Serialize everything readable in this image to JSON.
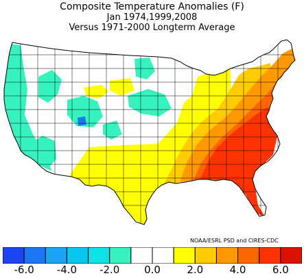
{
  "title": {
    "line1": "Composite Temperature Anomalies (F)",
    "line2": "Jan  1974,1999,2008",
    "line3": "Versus 1971-2000 Longterm Average"
  },
  "credit": "NOAA/ESRL PSD and CIRES-CDC",
  "legend": {
    "ticks": [
      "-6.0",
      "-4.0",
      "-2.0",
      "0.0",
      "2.0",
      "4.0",
      "6.0"
    ],
    "bins": [
      {
        "color": "#1d45f3"
      },
      {
        "color": "#1e77f7"
      },
      {
        "color": "#1aa4f4"
      },
      {
        "color": "#06c7ef"
      },
      {
        "color": "#0ce2e7"
      },
      {
        "color": "#36f2bf"
      },
      {
        "color": "#ffffff"
      },
      {
        "color": "#ffffff"
      },
      {
        "color": "#ffff00"
      },
      {
        "color": "#ffcc00"
      },
      {
        "color": "#ff9900"
      },
      {
        "color": "#ff6600"
      },
      {
        "color": "#ff3300"
      },
      {
        "color": "#dd1100"
      }
    ]
  },
  "colors": {
    "strong_warm": "#ff3300",
    "warm_orange": "#ff6600",
    "orange": "#ff9900",
    "gold": "#ffcc00",
    "yellow": "#ffff00",
    "mint": "#36f2bf",
    "cyan": "#06c7ef",
    "blue": "#1e77f7",
    "neutral": "#ffffff"
  }
}
